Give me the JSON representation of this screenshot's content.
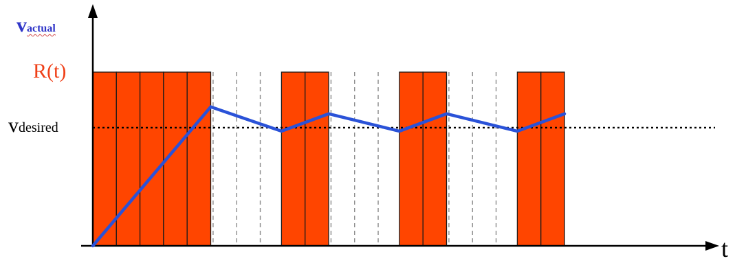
{
  "labels": {
    "v_actual": {
      "main": "v",
      "sub": "actual"
    },
    "r_t": "R(t)",
    "v_desired": {
      "main": "v",
      "sub": "desired"
    },
    "t_axis": "t"
  },
  "colors": {
    "pulse_fill": "#ff4500",
    "pulse_stroke": "#1a1a1a",
    "velocity_line": "#2a52d8",
    "v_actual_label": "#2f35c8",
    "r_t_label": "#ef3f17",
    "axes": "#000000",
    "slot_divider": "#8a8a8a",
    "desired_line": "#000000"
  },
  "timing": {
    "slot_count": 20,
    "active_slots": [
      0,
      1,
      2,
      3,
      4,
      8,
      9,
      13,
      14,
      18,
      19
    ],
    "divider_slots": [
      5,
      6,
      7,
      10,
      11,
      12,
      15,
      16,
      17
    ]
  },
  "levels": {
    "r_t": 1.0,
    "v_desired": 0.68,
    "baseline": 0
  },
  "velocity_profile": [
    {
      "slot": 0,
      "v": 0
    },
    {
      "slot": 5,
      "v": 0.8
    },
    {
      "slot": 8,
      "v": 0.66
    },
    {
      "slot": 10,
      "v": 0.76
    },
    {
      "slot": 13,
      "v": 0.66
    },
    {
      "slot": 15,
      "v": 0.76
    },
    {
      "slot": 18,
      "v": 0.66
    },
    {
      "slot": 20,
      "v": 0.76
    }
  ]
}
